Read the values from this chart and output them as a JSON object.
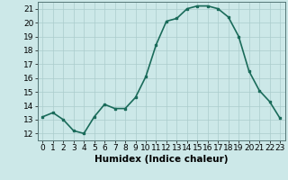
{
  "x": [
    0,
    1,
    2,
    3,
    4,
    5,
    6,
    7,
    8,
    9,
    10,
    11,
    12,
    13,
    14,
    15,
    16,
    17,
    18,
    19,
    20,
    21,
    22,
    23
  ],
  "y": [
    13.2,
    13.5,
    13.0,
    12.2,
    12.0,
    13.2,
    14.1,
    13.8,
    13.8,
    14.6,
    16.1,
    18.4,
    20.1,
    20.3,
    21.0,
    21.2,
    21.2,
    21.0,
    20.4,
    19.0,
    16.5,
    15.1,
    14.3,
    13.1
  ],
  "line_color": "#1a6b5a",
  "marker": "s",
  "marker_size": 2.0,
  "background_color": "#cce8e8",
  "grid_color": "#aacccc",
  "xlabel": "Humidex (Indice chaleur)",
  "xlabel_fontsize": 7.5,
  "xlim": [
    -0.5,
    23.5
  ],
  "ylim": [
    11.5,
    21.5
  ],
  "yticks": [
    12,
    13,
    14,
    15,
    16,
    17,
    18,
    19,
    20,
    21
  ],
  "xticks": [
    0,
    1,
    2,
    3,
    4,
    5,
    6,
    7,
    8,
    9,
    10,
    11,
    12,
    13,
    14,
    15,
    16,
    17,
    18,
    19,
    20,
    21,
    22,
    23
  ],
  "tick_fontsize": 6.5,
  "line_width": 1.2
}
